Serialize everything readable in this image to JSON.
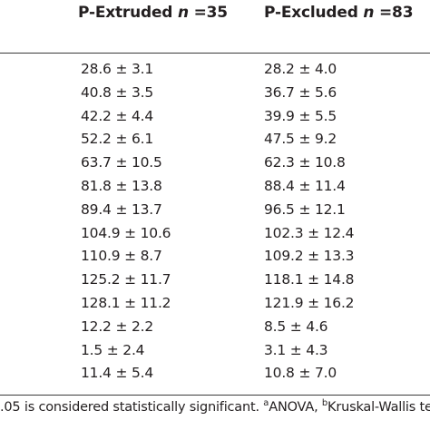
{
  "table": {
    "headers": {
      "extruded_label": "P-Extruded",
      "extruded_n_symbol": "n",
      "extruded_n_value": "=35",
      "excluded_label": "P-Excluded",
      "excluded_n_symbol": "n",
      "excluded_n_value": "=83"
    },
    "rows": [
      {
        "extruded": "28.6 ± 3.1",
        "excluded": "28.2 ± 4.0"
      },
      {
        "extruded": "40.8 ± 3.5",
        "excluded": "36.7 ± 5.6"
      },
      {
        "extruded": "42.2 ± 4.4",
        "excluded": "39.9 ± 5.5"
      },
      {
        "extruded": "52.2 ± 6.1",
        "excluded": "47.5 ± 9.2"
      },
      {
        "extruded": "63.7 ± 10.5",
        "excluded": "62.3 ± 10.8"
      },
      {
        "extruded": "81.8 ± 13.8",
        "excluded": "88.4 ± 11.4"
      },
      {
        "extruded": "89.4 ± 13.7",
        "excluded": "96.5 ± 12.1"
      },
      {
        "extruded": "104.9 ± 10.6",
        "excluded": "102.3 ± 12.4"
      },
      {
        "extruded": "110.9 ± 8.7",
        "excluded": "109.2 ± 13.3"
      },
      {
        "extruded": "125.2 ± 11.7",
        "excluded": "118.1 ± 14.8"
      },
      {
        "extruded": "128.1 ± 11.2",
        "excluded": "121.9 ± 16.2"
      },
      {
        "extruded": "12.2 ± 2.2",
        "excluded": "8.5 ± 4.6"
      },
      {
        "extruded": "1.5 ± 2.4",
        "excluded": "3.1 ± 4.3"
      },
      {
        "extruded": "11.4 ± 5.4",
        "excluded": "10.8 ± 7.0"
      }
    ]
  },
  "footnote": {
    "text_main": ".05 is considered statistically significant. ",
    "sup_a": "a",
    "anova": "ANOVA, ",
    "sup_b": "b",
    "kruskal": "Kruskal-Wallis test"
  }
}
